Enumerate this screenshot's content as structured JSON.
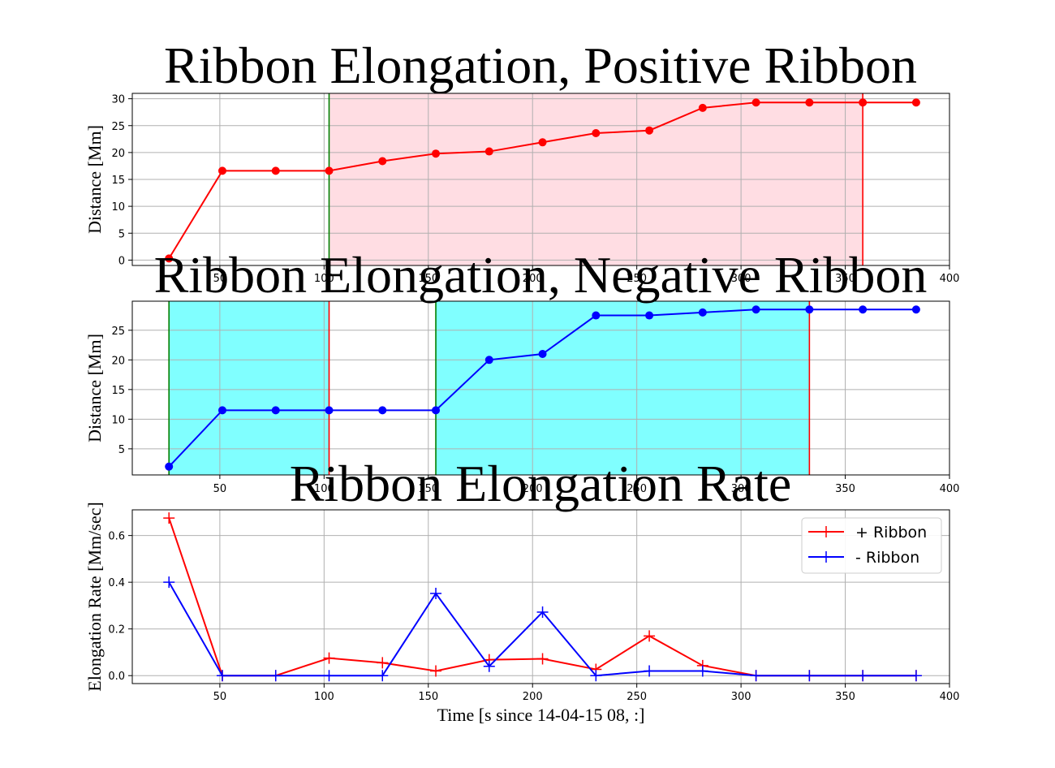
{
  "chart_data": [
    {
      "type": "line",
      "title": "Ribbon Elongation, Positive Ribbon",
      "xlabel": "",
      "ylabel": "Distance [Mm]",
      "xlim": [
        8,
        400
      ],
      "ylim": [
        -1,
        31
      ],
      "xticks": [
        50,
        100,
        150,
        200,
        250,
        300,
        350,
        400
      ],
      "yticks": [
        0,
        5,
        10,
        15,
        20,
        25,
        30
      ],
      "grid": true,
      "series": [
        {
          "color": "#ff0000",
          "marker": "circle",
          "x": [
            25.6,
            51.2,
            76.8,
            102.4,
            128.0,
            153.6,
            179.2,
            204.8,
            230.4,
            256.0,
            281.6,
            307.2,
            332.8,
            358.4,
            384.0
          ],
          "y": [
            0.3,
            16.6,
            16.6,
            16.6,
            18.4,
            19.8,
            20.2,
            21.9,
            23.6,
            24.1,
            28.3,
            29.3,
            29.3,
            29.3,
            29.3
          ]
        }
      ],
      "shaded_regions": [
        {
          "x0": 102.4,
          "x1": 358.4,
          "color": "#ffdde3"
        }
      ],
      "vlines": [
        {
          "x": 102.4,
          "color": "#008000"
        },
        {
          "x": 358.4,
          "color": "#ff0000"
        }
      ]
    },
    {
      "type": "line",
      "title": "Ribbon Elongation, Negative Ribbon",
      "xlabel": "",
      "ylabel": "Distance [Mm]",
      "xlim": [
        8,
        400
      ],
      "ylim": [
        0.6,
        29.9
      ],
      "xticks": [
        50,
        100,
        150,
        200,
        250,
        300,
        350,
        400
      ],
      "yticks": [
        5,
        10,
        15,
        20,
        25
      ],
      "grid": true,
      "series": [
        {
          "color": "#0000ff",
          "marker": "circle",
          "x": [
            25.6,
            51.2,
            76.8,
            102.4,
            128.0,
            153.6,
            179.2,
            204.8,
            230.4,
            256.0,
            281.6,
            307.2,
            332.8,
            358.4,
            384.0
          ],
          "y": [
            2.0,
            11.5,
            11.5,
            11.5,
            11.5,
            11.5,
            20.0,
            21.0,
            27.5,
            27.5,
            28.0,
            28.5,
            28.5,
            28.5,
            28.5
          ]
        }
      ],
      "shaded_regions": [
        {
          "x0": 25.6,
          "x1": 102.4,
          "color": "#80ffff"
        },
        {
          "x0": 153.6,
          "x1": 332.8,
          "color": "#80ffff"
        }
      ],
      "vlines": [
        {
          "x": 25.6,
          "color": "#008000"
        },
        {
          "x": 102.4,
          "color": "#ff0000"
        },
        {
          "x": 153.6,
          "color": "#008000"
        },
        {
          "x": 332.8,
          "color": "#ff0000"
        }
      ]
    },
    {
      "type": "line",
      "title": "Ribbon Elongation Rate",
      "xlabel": "Time [s since 14-04-15 08, :]",
      "ylabel": "Elongation Rate [Mm/sec]",
      "xlim": [
        8,
        400
      ],
      "ylim": [
        -0.034,
        0.71
      ],
      "xticks": [
        50,
        100,
        150,
        200,
        250,
        300,
        350,
        400
      ],
      "yticks": [
        0.0,
        0.2,
        0.4,
        0.6
      ],
      "ytick_labels": [
        "0.0",
        "0.2",
        "0.4",
        "0.6"
      ],
      "grid": true,
      "legend": "top-right",
      "series": [
        {
          "name": "+ Ribbon",
          "color": "#ff0000",
          "marker": "plus",
          "x": [
            25.6,
            51.2,
            76.8,
            102.4,
            128.0,
            153.6,
            179.2,
            204.8,
            230.4,
            256.0,
            281.6,
            307.2,
            332.8,
            358.4,
            384.0
          ],
          "y": [
            0.675,
            0.0,
            0.0,
            0.075,
            0.055,
            0.02,
            0.068,
            0.072,
            0.027,
            0.17,
            0.043,
            0.0,
            0.0,
            0.0,
            0.0
          ]
        },
        {
          "name": "- Ribbon",
          "color": "#0000ff",
          "marker": "plus",
          "x": [
            25.6,
            51.2,
            76.8,
            102.4,
            128.0,
            153.6,
            179.2,
            204.8,
            230.4,
            256.0,
            281.6,
            307.2,
            332.8,
            358.4,
            384.0
          ],
          "y": [
            0.4,
            0.0,
            0.0,
            0.0,
            0.0,
            0.352,
            0.04,
            0.272,
            0.0,
            0.02,
            0.02,
            0.0,
            0.0,
            0.0,
            0.0
          ]
        }
      ]
    }
  ]
}
